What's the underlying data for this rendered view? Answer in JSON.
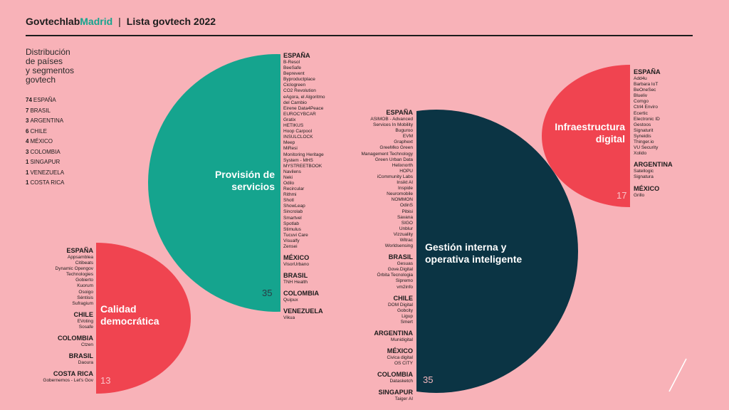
{
  "header": {
    "brand_main": "Govtechlab",
    "brand_accent": "Madrid",
    "separator": "|",
    "title": "Lista govtech 2022"
  },
  "intro": {
    "title_lines": [
      "Distribución",
      "de países",
      "y segmentos",
      "govtech"
    ],
    "stats": [
      {
        "n": "74",
        "country": "ESPAÑA"
      },
      {
        "n": "7",
        "country": "BRASIL"
      },
      {
        "n": "3",
        "country": "ARGENTINA"
      },
      {
        "n": "6",
        "country": "CHILE"
      },
      {
        "n": "4",
        "country": "MÉXICO"
      },
      {
        "n": "3",
        "country": "COLOMBIA"
      },
      {
        "n": "1",
        "country": "SINGAPUR"
      },
      {
        "n": "1",
        "country": "VENEZUELA"
      },
      {
        "n": "1",
        "country": "COSTA RICA"
      }
    ]
  },
  "colors": {
    "background": "#f8b2b8",
    "teal": "#15a48e",
    "navy": "#0b3444",
    "red": "#f04450",
    "text": "#1c1c1c"
  },
  "segments": {
    "provision": {
      "label_lines": [
        "Provisión de",
        "servicios"
      ],
      "count": "35",
      "groups": [
        {
          "country": "ESPAÑA",
          "items": [
            "B-Resol",
            "BeeSafe",
            "Beprevent",
            "Byproductplace",
            "Ciclogreen",
            "CO2 Revolution",
            "eAgora, el Algoritmo",
            "del Cambio",
            "Eirene Data4Peace",
            "EUROCYBCAR",
            "Gratix",
            "HETIKUS",
            "Hoop Carpool",
            "INSULCLOCK",
            "Meep",
            "MiResi",
            "Monitoring Heritage",
            "System - MHS",
            "MYSTREETBOOK",
            "Navilens",
            "Neki",
            "Odilo",
            "Recircular",
            "Rithmi",
            "Shotl",
            "ShowLeap",
            "Sincrolab",
            "Smartvel",
            "Spotlab",
            "Stimulus",
            "Tucuvi Care",
            "Visualfy",
            "Zensei"
          ]
        },
        {
          "country": "MÉXICO",
          "items": [
            "VisorUrbano"
          ]
        },
        {
          "country": "BRASIL",
          "items": [
            "TNH Health"
          ]
        },
        {
          "country": "COLOMBIA",
          "items": [
            "Quipux"
          ]
        },
        {
          "country": "VENEZUELA",
          "items": [
            "Vikua"
          ]
        }
      ]
    },
    "gestion": {
      "label_lines": [
        "Gestión interna y",
        "operativa inteligente"
      ],
      "count": "35",
      "groups": [
        {
          "country": "ESPAÑA",
          "items": [
            "ASIMOB - Advanced",
            "Services In Mobility",
            "Buguroo",
            "EVM",
            "Graphext",
            "GreeMko Green",
            "Management Technology",
            "Green Urban Data",
            "Helixnorth",
            "HOPU",
            "iCommunity Labs",
            "Insikt AI",
            "Inspide",
            "Neuromobile",
            "NOMMON",
            "OdinS",
            "Pibisi",
            "Savana",
            "SIGO",
            "Unblur",
            "Vizzuality",
            "Witrac",
            "Worldsensing"
          ]
        },
        {
          "country": "BRASIL",
          "items": [
            "Gesuas",
            "Gove.Digital",
            "Órbita Tecnologia",
            "Sipremo",
            "vm2info"
          ]
        },
        {
          "country": "CHILE",
          "items": [
            "DOM Digital",
            "Gobcity",
            "Ligup",
            "Smert"
          ]
        },
        {
          "country": "ARGENTINA",
          "items": [
            "Munidigital"
          ]
        },
        {
          "country": "MÉXICO",
          "items": [
            "Civica digital",
            "OS CITY"
          ]
        },
        {
          "country": "COLOMBIA",
          "items": [
            "Datasketch"
          ]
        },
        {
          "country": "SINGAPUR",
          "items": [
            "Taiger AI"
          ]
        }
      ]
    },
    "calidad": {
      "label_lines": [
        "Calidad",
        "democrática"
      ],
      "count": "13",
      "groups": [
        {
          "country": "ESPAÑA",
          "items": [
            "Appsamblea",
            "Citibeats",
            "Dynamic Opengov",
            "Technologies",
            "Gobierto",
            "Kuorum",
            "Osoigo",
            "Séntisis",
            "Sufragium"
          ]
        },
        {
          "country": "CHILE",
          "items": [
            "EVoting",
            "Sosafe"
          ]
        },
        {
          "country": "COLOMBIA",
          "items": [
            "Ctzen"
          ]
        },
        {
          "country": "BRASIL",
          "items": [
            "Daoura"
          ]
        },
        {
          "country": "COSTA RICA",
          "items": [
            "Gobernemos - Let's Gov"
          ]
        }
      ]
    },
    "infra": {
      "label_lines": [
        "Infraestructura",
        "digital"
      ],
      "count": "17",
      "groups": [
        {
          "country": "ESPAÑA",
          "items": [
            "Add4u",
            "Barbara IoT",
            "BeOneSec",
            "Blueliv",
            "Comgo",
            "Ctrl4 Enviro",
            "Ecertic",
            "Electronic ID",
            "Gestoos",
            "Signaturit",
            "Syneidis",
            "Thinger.io",
            "VU Security",
            "Xolido"
          ]
        },
        {
          "country": "ARGENTINA",
          "items": [
            "Satellogic",
            "Signatura"
          ]
        },
        {
          "country": "MÉXICO",
          "items": [
            "Grillo"
          ]
        }
      ]
    }
  }
}
